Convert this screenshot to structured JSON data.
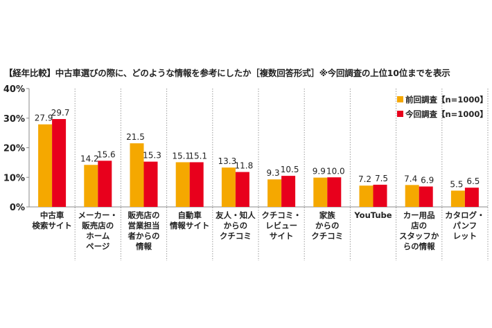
{
  "chart_data": {
    "type": "bar",
    "title": "【経年比較】中古車選びの際に、どのような情報を参考にしたか［複数回答形式］※今回調査の上位10位までを表示",
    "categories": [
      [
        "中古車",
        "検索サイト"
      ],
      [
        "メーカー・",
        "販売店の",
        "ホーム",
        "ページ"
      ],
      [
        "販売店の",
        "営業担当",
        "者からの",
        "情報"
      ],
      [
        "自動車",
        "情報サイト"
      ],
      [
        "友人・知人",
        "からの",
        "クチコミ"
      ],
      [
        "クチコミ・",
        "レビュー",
        "サイト"
      ],
      [
        "家族",
        "からの",
        "クチコミ"
      ],
      [
        "YouTube"
      ],
      [
        "カー用品",
        "店の",
        "スタッフか",
        "らの情報"
      ],
      [
        "カタログ・",
        "パンフ",
        "レット"
      ]
    ],
    "series": [
      {
        "name": "前回調査【n=1000】",
        "color": "#F5A800",
        "values": [
          27.9,
          14.2,
          21.5,
          15.1,
          13.3,
          9.3,
          9.9,
          7.2,
          7.4,
          5.5
        ]
      },
      {
        "name": "今回調査【n=1000】",
        "color": "#E8001C",
        "values": [
          29.7,
          15.6,
          15.3,
          15.1,
          11.8,
          10.5,
          10.0,
          7.5,
          6.9,
          6.5
        ]
      }
    ],
    "y_ticks": [
      "0%",
      "10%",
      "20%",
      "30%",
      "40%"
    ],
    "ylim": [
      0,
      40
    ],
    "grid": false,
    "legend_placement": "top-right"
  }
}
